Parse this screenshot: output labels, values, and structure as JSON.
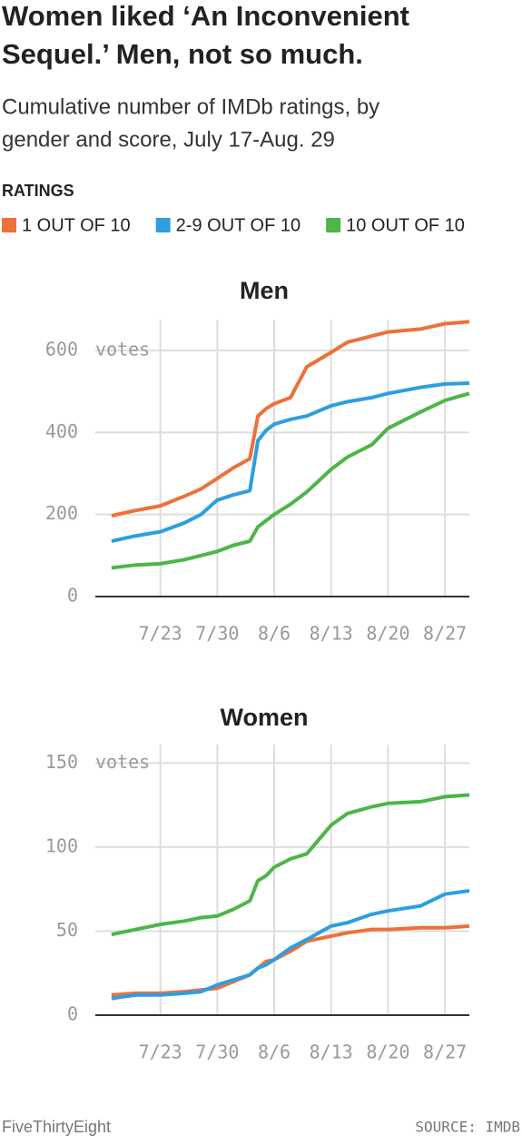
{
  "title": "Women liked ‘An Inconvenient Sequel.’ Men, not so much.",
  "title_lines": [
    "Women liked ‘An Inconvenient",
    "Sequel.’ Men, not so much."
  ],
  "subtitle_lines": [
    "Cumulative number of IMDb ratings, by",
    "gender and score, July 17-Aug. 29"
  ],
  "legend_title": "RATINGS",
  "footer": {
    "left": "FiveThirtyEight",
    "right": "SOURCE: IMDB"
  },
  "chart_data": [
    {
      "type": "line",
      "title": "Men",
      "y_unit": "votes",
      "x": [
        "7/17",
        "7/20",
        "7/23",
        "7/26",
        "7/28",
        "7/30",
        "8/1",
        "8/3",
        "8/4",
        "8/5",
        "8/6",
        "8/8",
        "8/10",
        "8/13",
        "8/15",
        "8/18",
        "8/20",
        "8/24",
        "8/27",
        "8/30"
      ],
      "xlim": [
        "7/15",
        "8/30"
      ],
      "xticks": [
        "7/23",
        "7/30",
        "8/6",
        "8/13",
        "8/20",
        "8/27"
      ],
      "ylim": [
        0,
        675
      ],
      "yticks": [
        0,
        200,
        400,
        600
      ],
      "grid": true,
      "series": [
        {
          "name": "1 OUT OF 10",
          "color": "#ed713a",
          "values": [
            197,
            210,
            221,
            245,
            262,
            288,
            314,
            336,
            440,
            458,
            470,
            485,
            560,
            595,
            620,
            635,
            645,
            652,
            665,
            670
          ]
        },
        {
          "name": "2-9 OUT OF 10",
          "color": "#2d9ee0",
          "values": [
            135,
            148,
            158,
            180,
            200,
            235,
            248,
            258,
            380,
            405,
            420,
            432,
            440,
            465,
            475,
            485,
            495,
            510,
            518,
            520
          ]
        },
        {
          "name": "10 OUT OF 10",
          "color": "#4cb648",
          "values": [
            70,
            77,
            80,
            90,
            100,
            110,
            125,
            135,
            170,
            185,
            200,
            225,
            255,
            310,
            340,
            370,
            410,
            450,
            478,
            495
          ]
        }
      ]
    },
    {
      "type": "line",
      "title": "Women",
      "y_unit": "votes",
      "x": [
        "7/17",
        "7/20",
        "7/23",
        "7/26",
        "7/28",
        "7/30",
        "8/1",
        "8/3",
        "8/4",
        "8/5",
        "8/6",
        "8/8",
        "8/10",
        "8/13",
        "8/15",
        "8/18",
        "8/20",
        "8/24",
        "8/27",
        "8/30"
      ],
      "xlim": [
        "7/15",
        "8/30"
      ],
      "xticks": [
        "7/23",
        "7/30",
        "8/6",
        "8/13",
        "8/20",
        "8/27"
      ],
      "ylim": [
        0,
        161
      ],
      "yticks": [
        0,
        50,
        100,
        150
      ],
      "grid": true,
      "series": [
        {
          "name": "1 OUT OF 10",
          "color": "#ed713a",
          "values": [
            12,
            13,
            13,
            14,
            15,
            16,
            20,
            24,
            28,
            32,
            33,
            38,
            44,
            47,
            49,
            51,
            51,
            52,
            52,
            53
          ]
        },
        {
          "name": "2-9 OUT OF 10",
          "color": "#2d9ee0",
          "values": [
            10,
            12,
            12,
            13,
            14,
            18,
            21,
            24,
            28,
            30,
            33,
            40,
            45,
            53,
            55,
            60,
            62,
            65,
            72,
            74
          ]
        },
        {
          "name": "10 OUT OF 10",
          "color": "#4cb648",
          "values": [
            48,
            51,
            54,
            56,
            58,
            59,
            63,
            68,
            80,
            83,
            88,
            93,
            96,
            113,
            120,
            124,
            126,
            127,
            130,
            131
          ]
        }
      ]
    }
  ]
}
